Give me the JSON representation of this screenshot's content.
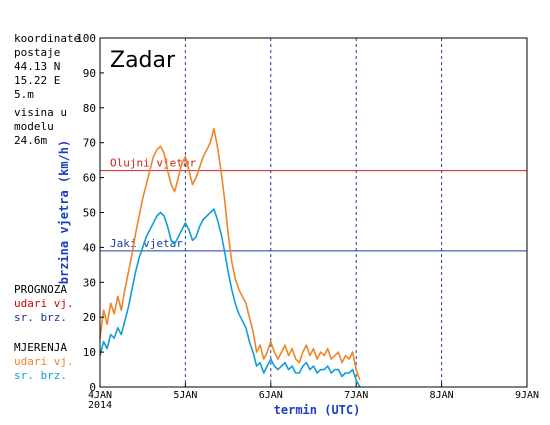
{
  "station": {
    "coord_label": "koordinate postaje",
    "lat": "44.13 N",
    "lon": "15.22 E",
    "elev": "5.m",
    "model_height_label": "visina u modelu",
    "model_height": "24.6m"
  },
  "legend": {
    "forecast_title": "PROGNOZA",
    "forecast_gust": "udari vj.",
    "forecast_mean": "sr. brz.",
    "obs_title": "MJERENJA",
    "obs_gust": "udari vj.",
    "obs_mean": "sr. brz."
  },
  "colors": {
    "forecast_gust": "#cc0000",
    "forecast_mean": "#1a2f9e",
    "obs_gust": "#ef8528",
    "obs_mean": "#119dd8",
    "grid": "#2a3e99",
    "gale_line": "#cc2222",
    "strong_line": "#1a3fa0"
  },
  "chart_data": {
    "type": "line",
    "title": "Zadar",
    "xlabel": "termin (UTC)",
    "ylabel": "brzina vjetra (km/h)",
    "xlim": [
      0,
      120
    ],
    "ylim": [
      0,
      100
    ],
    "yticks": [
      "0",
      "10",
      "20",
      "30",
      "40",
      "50",
      "60",
      "70",
      "80",
      "90",
      "100"
    ],
    "xticks": [
      {
        "label": "4JAN",
        "sublabel": "2014",
        "x": 0
      },
      {
        "label": "5JAN",
        "x": 24
      },
      {
        "label": "6JAN",
        "x": 48
      },
      {
        "label": "7JAN",
        "x": 72
      },
      {
        "label": "8JAN",
        "x": 96
      },
      {
        "label": "9JAN",
        "x": 120
      }
    ],
    "thresholds": [
      {
        "label": "Olujni vjetar",
        "value": 62
      },
      {
        "label": "Jaki vjetar",
        "value": 39
      }
    ],
    "series": [
      {
        "name": "udari vj.",
        "x": [
          0,
          1,
          2,
          3,
          4,
          5,
          6,
          7,
          8,
          9,
          10,
          11,
          12,
          13,
          14,
          15,
          16,
          17,
          18,
          19,
          20,
          21,
          22,
          23,
          24,
          25,
          26,
          27,
          28,
          29,
          30,
          31,
          32,
          33,
          34,
          35,
          36,
          37,
          38,
          39,
          40,
          41,
          42,
          43,
          44,
          45,
          46,
          47,
          48,
          49,
          50,
          51,
          52,
          53,
          54,
          55,
          56,
          57,
          58,
          59,
          60,
          61,
          62,
          63,
          64,
          65,
          66,
          67,
          68,
          69,
          70,
          71,
          72,
          73
        ],
        "values": [
          14,
          22,
          18,
          24,
          21,
          26,
          22,
          28,
          33,
          38,
          44,
          49,
          54,
          58,
          62,
          66,
          68,
          69,
          67,
          62,
          58,
          56,
          60,
          64,
          66,
          62,
          58,
          60,
          63,
          66,
          68,
          70,
          74,
          69,
          62,
          54,
          44,
          36,
          31,
          28,
          26,
          24,
          20,
          16,
          10,
          12,
          8,
          10,
          13,
          10,
          8,
          10,
          12,
          9,
          11,
          8,
          7,
          10,
          12,
          9,
          11,
          8,
          10,
          9,
          11,
          8,
          9,
          10,
          7,
          9,
          8,
          10,
          5,
          2
        ]
      },
      {
        "name": "sr. brz.",
        "x": [
          0,
          1,
          2,
          3,
          4,
          5,
          6,
          7,
          8,
          9,
          10,
          11,
          12,
          13,
          14,
          15,
          16,
          17,
          18,
          19,
          20,
          21,
          22,
          23,
          24,
          25,
          26,
          27,
          28,
          29,
          30,
          31,
          32,
          33,
          34,
          35,
          36,
          37,
          38,
          39,
          40,
          41,
          42,
          43,
          44,
          45,
          46,
          47,
          48,
          49,
          50,
          51,
          52,
          53,
          54,
          55,
          56,
          57,
          58,
          59,
          60,
          61,
          62,
          63,
          64,
          65,
          66,
          67,
          68,
          69,
          70,
          71,
          72,
          73
        ],
        "values": [
          9,
          13,
          11,
          15,
          14,
          17,
          15,
          19,
          23,
          28,
          33,
          37,
          40,
          43,
          45,
          47,
          49,
          50,
          49,
          46,
          42,
          41,
          43,
          45,
          47,
          45,
          42,
          43,
          46,
          48,
          49,
          50,
          51,
          48,
          44,
          39,
          33,
          28,
          24,
          21,
          19,
          17,
          13,
          10,
          6,
          7,
          4,
          6,
          8,
          6,
          5,
          6,
          7,
          5,
          6,
          4,
          4,
          6,
          7,
          5,
          6,
          4,
          5,
          5,
          6,
          4,
          5,
          5,
          3,
          4,
          4,
          5,
          2,
          0
        ]
      }
    ]
  }
}
